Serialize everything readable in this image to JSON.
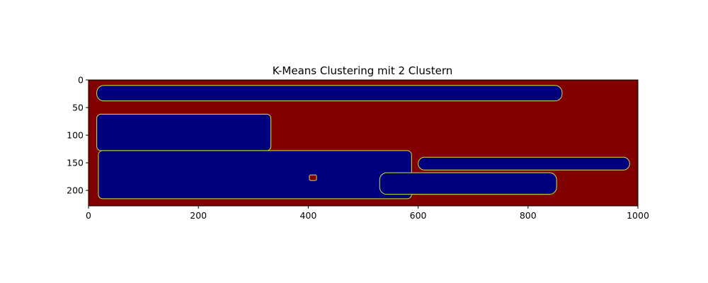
{
  "chart_data": {
    "type": "heatmap",
    "title": "K-Means Clustering mit 2 Clustern",
    "xlabel": "",
    "ylabel": "",
    "xlim": [
      0,
      1000
    ],
    "ylim": [
      228,
      0
    ],
    "xticks": [
      0,
      200,
      400,
      600,
      800,
      1000
    ],
    "yticks": [
      0,
      50,
      100,
      150,
      200
    ],
    "colormap": "jet",
    "cluster_colors": {
      "background_cluster": "#800000",
      "text_cluster": "#00007f",
      "boundary": "#c8e63c"
    },
    "clusters": [
      {
        "label": 1,
        "regions": [
          {
            "shape": "band",
            "x": [
              15,
              862
            ],
            "y": [
              10,
              38
            ]
          },
          {
            "shape": "block",
            "x": [
              15,
              332
            ],
            "y": [
              62,
              128
            ]
          },
          {
            "shape": "block",
            "x": [
              18,
              588
            ],
            "y": [
              128,
              215
            ]
          },
          {
            "shape": "band",
            "x": [
              600,
              985
            ],
            "y": [
              140,
              163
            ]
          },
          {
            "shape": "band",
            "x": [
              530,
              852
            ],
            "y": [
              168,
              207
            ]
          },
          {
            "shape": "spot",
            "x": [
              402,
              415
            ],
            "y": [
              172,
              182
            ],
            "label": 0
          }
        ]
      }
    ]
  }
}
